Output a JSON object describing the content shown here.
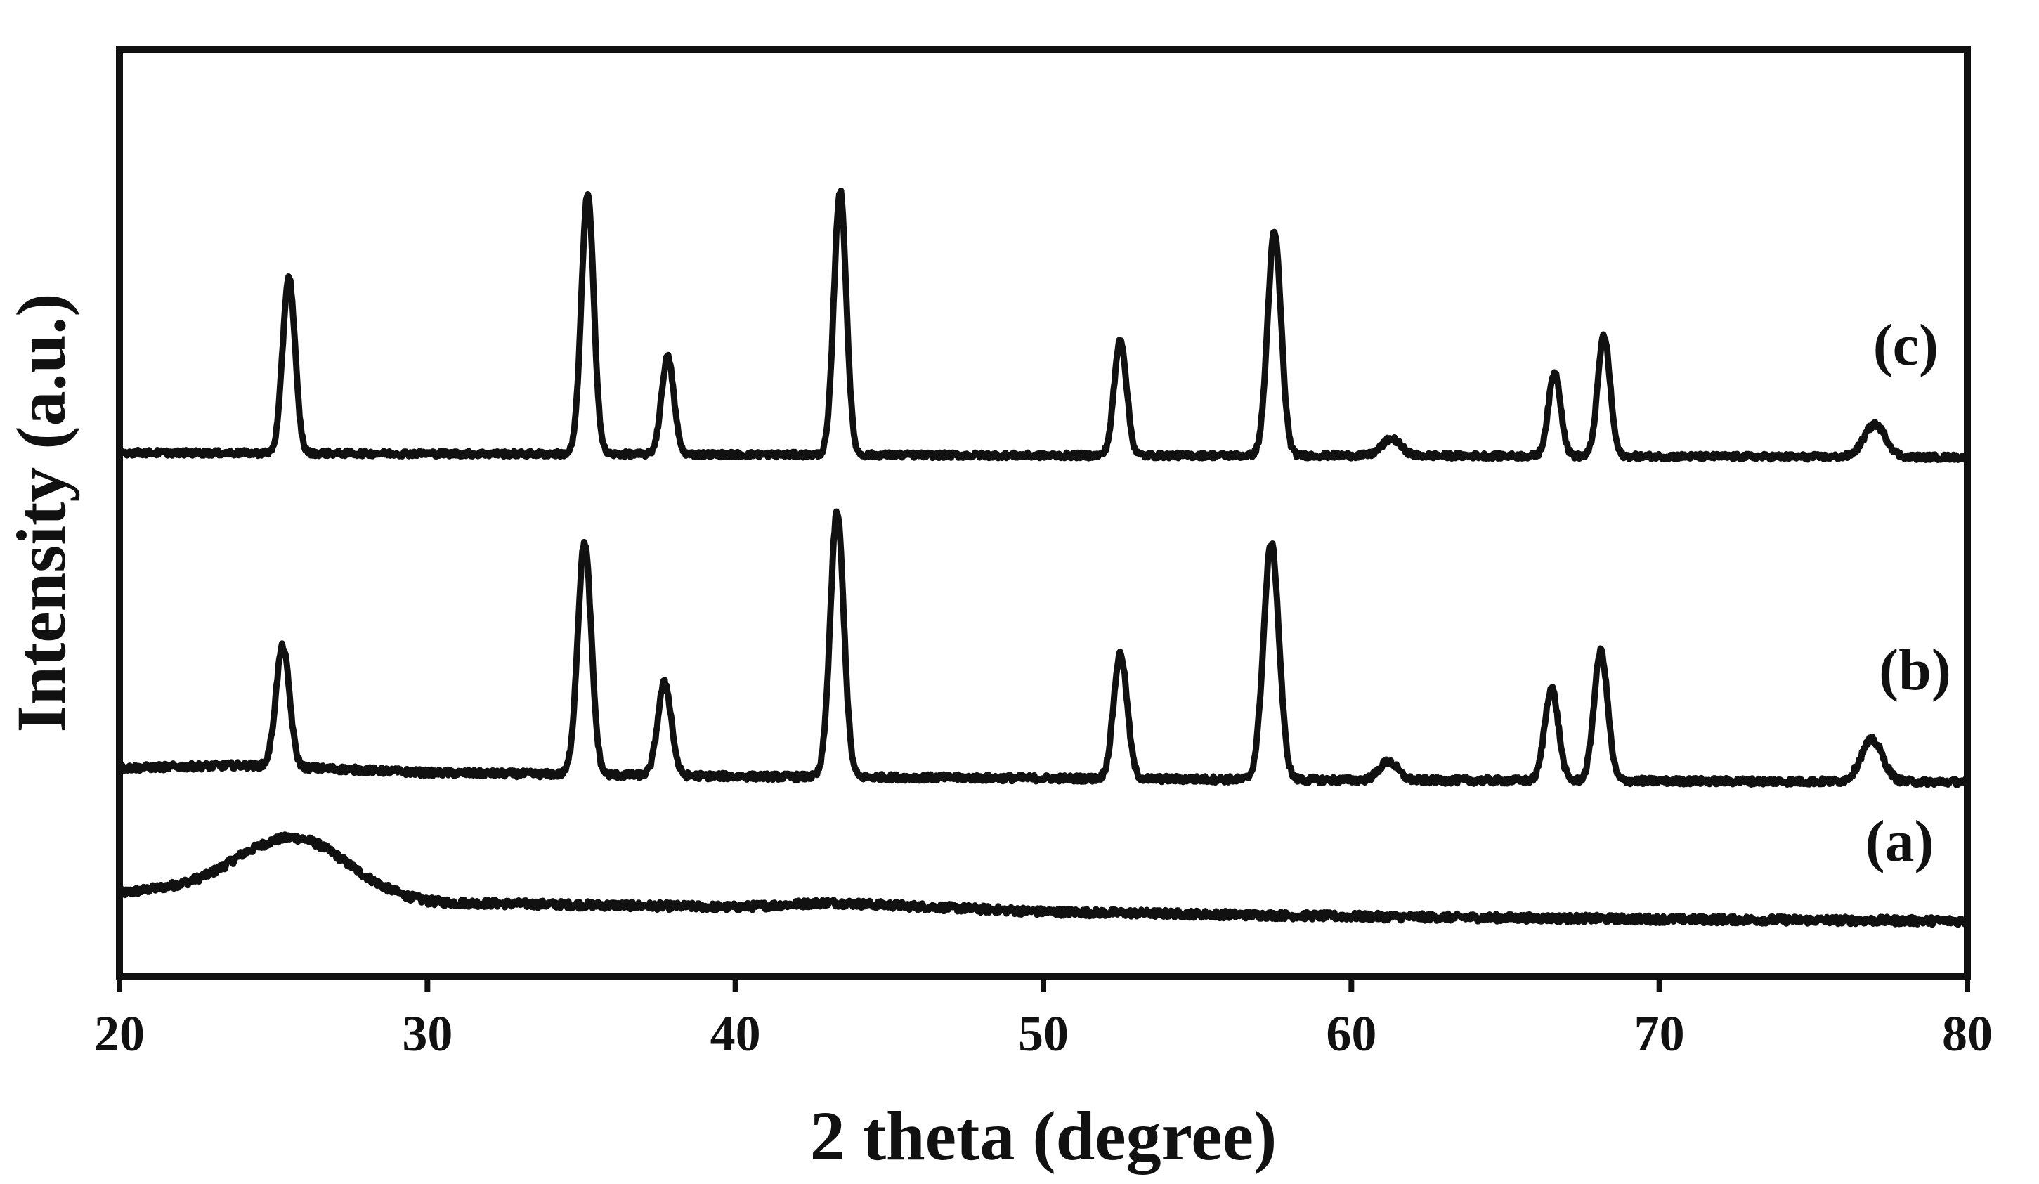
{
  "chart_data": {
    "type": "line",
    "title": "",
    "xlabel": "2 theta (degree)",
    "ylabel": "Intensity (a.u.)",
    "xlim": [
      20,
      80
    ],
    "ylim": [
      0,
      100
    ],
    "x_ticks": [
      20,
      30,
      40,
      50,
      60,
      70,
      80
    ],
    "y_ticks_shown": false,
    "grid": false,
    "legend": "none",
    "series": [
      {
        "name": "(a)",
        "baseline": [
          [
            20,
            9.0
          ],
          [
            24,
            10.5
          ],
          [
            30,
            8.0
          ],
          [
            40,
            7.5
          ],
          [
            43,
            8.0
          ],
          [
            50,
            7.0
          ],
          [
            60,
            6.5
          ],
          [
            70,
            6.2
          ],
          [
            80,
            6.0
          ]
        ],
        "peaks": [
          {
            "x": 25.8,
            "height": 5.2,
            "width": 1.6
          }
        ],
        "noise": 0.4
      },
      {
        "name": "(b)",
        "baseline": [
          [
            20,
            22.5
          ],
          [
            24,
            22.8
          ],
          [
            30,
            22.0
          ],
          [
            40,
            21.6
          ],
          [
            50,
            21.4
          ],
          [
            60,
            21.2
          ],
          [
            70,
            21.1
          ],
          [
            80,
            21.0
          ]
        ],
        "peaks": [
          {
            "x": 25.3,
            "height": 13.0,
            "width": 0.22
          },
          {
            "x": 35.1,
            "height": 25.0,
            "width": 0.22
          },
          {
            "x": 37.7,
            "height": 10.0,
            "width": 0.22
          },
          {
            "x": 43.3,
            "height": 28.5,
            "width": 0.22
          },
          {
            "x": 52.5,
            "height": 13.5,
            "width": 0.22
          },
          {
            "x": 57.4,
            "height": 25.5,
            "width": 0.25
          },
          {
            "x": 61.2,
            "height": 2.0,
            "width": 0.3
          },
          {
            "x": 66.5,
            "height": 10.0,
            "width": 0.22
          },
          {
            "x": 68.1,
            "height": 14.0,
            "width": 0.22
          },
          {
            "x": 76.9,
            "height": 4.5,
            "width": 0.35
          }
        ],
        "noise": 0.35
      },
      {
        "name": "(c)",
        "baseline": [
          [
            20,
            56.5
          ],
          [
            30,
            56.4
          ],
          [
            40,
            56.3
          ],
          [
            50,
            56.2
          ],
          [
            60,
            56.2
          ],
          [
            70,
            56.1
          ],
          [
            80,
            56.0
          ]
        ],
        "peaks": [
          {
            "x": 25.5,
            "height": 19.0,
            "width": 0.2
          },
          {
            "x": 35.2,
            "height": 28.0,
            "width": 0.2
          },
          {
            "x": 37.8,
            "height": 10.5,
            "width": 0.2
          },
          {
            "x": 43.4,
            "height": 28.5,
            "width": 0.2
          },
          {
            "x": 52.5,
            "height": 12.5,
            "width": 0.2
          },
          {
            "x": 57.5,
            "height": 24.0,
            "width": 0.22
          },
          {
            "x": 61.3,
            "height": 1.8,
            "width": 0.3
          },
          {
            "x": 66.6,
            "height": 9.0,
            "width": 0.2
          },
          {
            "x": 68.2,
            "height": 13.0,
            "width": 0.2
          },
          {
            "x": 77.0,
            "height": 3.5,
            "width": 0.35
          }
        ],
        "noise": 0.3
      }
    ],
    "annotations": [
      {
        "text": "(c)",
        "x": 78.0,
        "y": 66.0
      },
      {
        "text": "(b)",
        "x": 78.3,
        "y": 31.0
      },
      {
        "text": "(a)",
        "x": 77.8,
        "y": 12.5
      }
    ]
  }
}
